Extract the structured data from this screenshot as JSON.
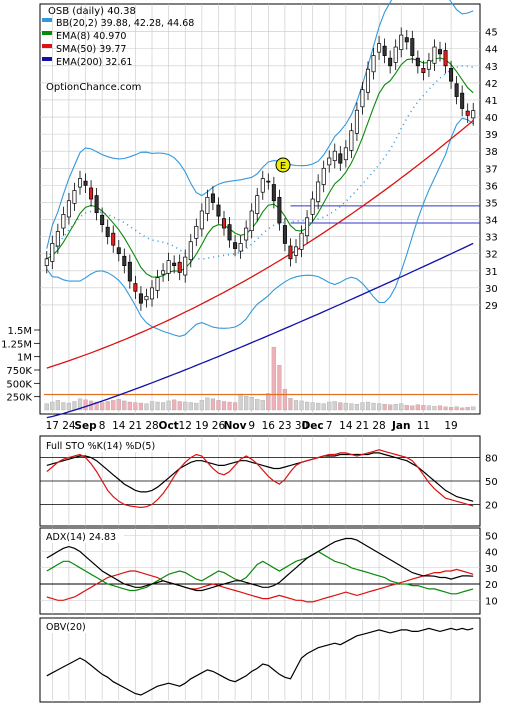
{
  "chart_data": {
    "type": "line",
    "header": "OSB (daily) 40.38",
    "watermark": "OptionChance.com",
    "legend": [
      {
        "label": "BB(20,2) 39.88, 42.28, 44.68",
        "color": "#3399dd"
      },
      {
        "label": "EMA(8) 40.970",
        "color": "#0a8a0a"
      },
      {
        "label": "SMA(50) 39.77",
        "color": "#dd1111"
      },
      {
        "label": "EMA(200) 32.61",
        "color": "#1111aa"
      }
    ],
    "earnings_marker": "E",
    "price_axis_ticks": [
      45,
      44,
      43,
      42,
      41,
      40,
      39,
      38,
      37,
      36,
      35,
      34,
      33,
      32,
      31,
      30,
      29
    ],
    "volume_axis_ticks": [
      "1.5M",
      "1.25M",
      "1M",
      "750K",
      "500K",
      "250K"
    ],
    "x_ticks": [
      "17",
      "24",
      "Sep",
      "8",
      "14",
      "21",
      "28",
      "Oct",
      "12",
      "19",
      "26",
      "Nov",
      "9",
      "16",
      "23",
      "30",
      "Dec",
      "7",
      "14",
      "21",
      "28",
      "Jan",
      "11",
      "19"
    ],
    "ylim": [
      28,
      45.8
    ],
    "horizontal_lines": [
      34.8,
      33.8
    ],
    "candles_close": [
      31.7,
      32.6,
      33.3,
      34.3,
      35.1,
      35.7,
      36.4,
      36.0,
      35.2,
      34.4,
      33.7,
      33.0,
      32.5,
      32.0,
      31.3,
      30.4,
      29.8,
      29.1,
      29.5,
      30.0,
      30.6,
      31.0,
      31.6,
      31.3,
      30.9,
      31.8,
      32.7,
      33.6,
      34.5,
      35.3,
      35.0,
      34.2,
      33.5,
      32.8,
      32.3,
      32.6,
      33.5,
      34.5,
      35.4,
      36.4,
      36.2,
      35.1,
      33.8,
      32.6,
      31.7,
      32.4,
      33.2,
      34.1,
      35.2,
      36.2,
      37.0,
      37.6,
      38.0,
      37.3,
      38.2,
      39.2,
      40.4,
      41.6,
      42.8,
      43.6,
      44.3,
      43.6,
      43.0,
      44.1,
      44.8,
      44.4,
      43.6,
      43.0,
      42.6,
      43.3,
      44.1,
      43.7,
      43.0,
      42.1,
      41.2,
      40.5,
      40.1,
      40.38
    ],
    "series": [
      {
        "name": "BB upper",
        "ylim": [
          29.6,
          45.4
        ],
        "from": 4,
        "to": 77
      },
      {
        "name": "EMA(8)",
        "ylim": [
          29.4,
          44.2
        ],
        "from": 0,
        "to": 77
      },
      {
        "name": "SMA(50)",
        "ylim": [
          25.3,
          39.8
        ],
        "from": 0,
        "to": 77
      },
      {
        "name": "EMA(200)",
        "ylim": [
          22.4,
          32.6
        ],
        "from": 0,
        "to": 77
      }
    ],
    "volume_values": [
      120000,
      150000,
      180000,
      140000,
      130000,
      160000,
      210000,
      190000,
      170000,
      150000,
      140000,
      160000,
      180000,
      200000,
      170000,
      150000,
      140000,
      130000,
      120000,
      160000,
      150000,
      140000,
      170000,
      190000,
      160000,
      150000,
      140000,
      130000,
      180000,
      230000,
      210000,
      180000,
      160000,
      150000,
      140000,
      300000,
      260000,
      240000,
      200000,
      180000,
      310000,
      1180000,
      840000,
      390000,
      220000,
      180000,
      170000,
      150000,
      140000,
      130000,
      120000,
      150000,
      160000,
      140000,
      130000,
      120000,
      110000,
      140000,
      150000,
      130000,
      120000,
      110000,
      100000,
      110000,
      120000,
      90000,
      80000,
      100000,
      90000,
      80000,
      70000,
      80000,
      60000,
      50000,
      60000,
      40000,
      50000,
      60000
    ],
    "volume_ma": 290000,
    "stochastic": {
      "label": "Full STO %K(14) %D(5)",
      "ticks": [
        80,
        50,
        20
      ],
      "k_values": [
        62,
        68,
        74,
        78,
        80,
        82,
        84,
        80,
        72,
        62,
        50,
        38,
        30,
        24,
        20,
        18,
        17,
        16,
        17,
        20,
        26,
        34,
        44,
        56,
        66,
        74,
        80,
        84,
        82,
        74,
        66,
        60,
        58,
        62,
        70,
        78,
        82,
        78,
        72,
        64,
        56,
        50,
        46,
        52,
        62,
        70,
        74,
        76,
        78,
        80,
        82,
        84,
        84,
        86,
        86,
        84,
        82,
        84,
        86,
        88,
        90,
        88,
        86,
        84,
        82,
        80,
        76,
        68,
        58,
        48,
        40,
        34,
        28,
        26,
        24,
        22,
        20,
        18
      ],
      "d_values": [
        70,
        72,
        74,
        76,
        78,
        80,
        82,
        82,
        80,
        76,
        70,
        64,
        58,
        52,
        46,
        42,
        38,
        36,
        36,
        38,
        42,
        48,
        54,
        60,
        66,
        70,
        74,
        76,
        76,
        74,
        72,
        70,
        70,
        72,
        74,
        76,
        76,
        74,
        72,
        70,
        68,
        66,
        66,
        68,
        70,
        72,
        74,
        76,
        78,
        80,
        82,
        82,
        82,
        84,
        84,
        84,
        84,
        84,
        84,
        86,
        86,
        84,
        82,
        80,
        78,
        76,
        72,
        68,
        62,
        56,
        50,
        44,
        38,
        34,
        30,
        28,
        26,
        24
      ]
    },
    "adx": {
      "label": "ADX(14) 24.83",
      "ticks": [
        50,
        40,
        30,
        20,
        10
      ],
      "adx_values": [
        36,
        38,
        40,
        42,
        43,
        42,
        40,
        37,
        34,
        31,
        28,
        26,
        24,
        22,
        20,
        19,
        18,
        18,
        19,
        20,
        21,
        22,
        21,
        20,
        19,
        18,
        17,
        16,
        16,
        17,
        18,
        19,
        20,
        21,
        22,
        22,
        21,
        20,
        19,
        18,
        18,
        19,
        21,
        24,
        27,
        30,
        33,
        36,
        38,
        40,
        42,
        44,
        46,
        47,
        48,
        48,
        47,
        45,
        43,
        41,
        39,
        37,
        35,
        33,
        31,
        29,
        27,
        26,
        25,
        25,
        24.83,
        24,
        24,
        23,
        24,
        25,
        25,
        24.83
      ],
      "plus_di": [
        28,
        30,
        32,
        34,
        34,
        32,
        30,
        28,
        26,
        24,
        22,
        20,
        19,
        18,
        17,
        16,
        16,
        17,
        18,
        20,
        22,
        24,
        26,
        27,
        28,
        27,
        25,
        23,
        22,
        24,
        26,
        28,
        27,
        25,
        23,
        22,
        24,
        28,
        32,
        34,
        32,
        30,
        28,
        30,
        32,
        34,
        35,
        36,
        38,
        40,
        38,
        36,
        34,
        33,
        32,
        30,
        29,
        28,
        27,
        26,
        25,
        24,
        22,
        21,
        20,
        20,
        19,
        19,
        18,
        17,
        17,
        16,
        15,
        14,
        14,
        15,
        16,
        17
      ],
      "minus_di": [
        12,
        11,
        10,
        10,
        11,
        12,
        14,
        16,
        18,
        20,
        22,
        24,
        25,
        26,
        27,
        28,
        28,
        27,
        26,
        25,
        24,
        22,
        21,
        20,
        19,
        18,
        17,
        17,
        18,
        19,
        20,
        19,
        18,
        17,
        16,
        15,
        14,
        13,
        12,
        11,
        11,
        12,
        13,
        12,
        11,
        10,
        10,
        9,
        9,
        10,
        11,
        12,
        13,
        14,
        15,
        14,
        13,
        14,
        15,
        16,
        17,
        18,
        19,
        20,
        21,
        22,
        23,
        24,
        25,
        26,
        27,
        27,
        28,
        28,
        29,
        28,
        27,
        26
      ]
    },
    "obv": {
      "label": "OBV(20)",
      "values": [
        30,
        34,
        38,
        42,
        46,
        50,
        54,
        50,
        44,
        38,
        32,
        28,
        22,
        18,
        14,
        10,
        6,
        4,
        8,
        12,
        16,
        18,
        20,
        18,
        16,
        20,
        26,
        30,
        34,
        38,
        36,
        32,
        28,
        24,
        22,
        26,
        30,
        36,
        40,
        46,
        44,
        38,
        32,
        28,
        26,
        40,
        54,
        60,
        64,
        68,
        70,
        72,
        74,
        72,
        76,
        80,
        84,
        86,
        88,
        90,
        92,
        90,
        88,
        90,
        92,
        92,
        90,
        90,
        92,
        94,
        92,
        90,
        92,
        94,
        92,
        94,
        92,
        94
      ]
    }
  }
}
